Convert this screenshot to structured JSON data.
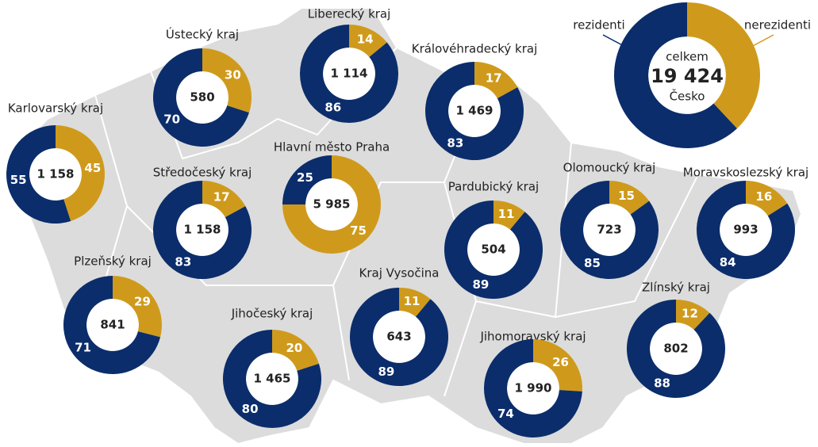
{
  "colors": {
    "residents": "#0b2d6b",
    "nonresidents": "#cf9a1c"
  },
  "country": {
    "legend": {
      "residents": "rezidenti",
      "nonresidents": "nerezidenti"
    },
    "label": "celkem",
    "total": "19 424",
    "name": "Česko",
    "residents": 62,
    "nonresidents": 38
  },
  "regions": [
    {
      "name": "Karlovarský kraj",
      "total": "1 158",
      "residents": 55,
      "nonresidents": 45
    },
    {
      "name": "Ústecký kraj",
      "total": "580",
      "residents": 70,
      "nonresidents": 30
    },
    {
      "name": "Liberecký kraj",
      "total": "1 114",
      "residents": 86,
      "nonresidents": 14
    },
    {
      "name": "Královéhradecký kraj",
      "total": "1 469",
      "residents": 83,
      "nonresidents": 17
    },
    {
      "name": "Středočeský kraj",
      "total": "1 158",
      "residents": 83,
      "nonresidents": 17
    },
    {
      "name": "Hlavní město Praha",
      "total": "5 985",
      "residents": 25,
      "nonresidents": 75
    },
    {
      "name": "Pardubický kraj",
      "total": "504",
      "residents": 89,
      "nonresidents": 11
    },
    {
      "name": "Olomoucký kraj",
      "total": "723",
      "residents": 85,
      "nonresidents": 15
    },
    {
      "name": "Moravskoslezský kraj",
      "total": "993",
      "residents": 84,
      "nonresidents": 16
    },
    {
      "name": "Plzeňský kraj",
      "total": "841",
      "residents": 71,
      "nonresidents": 29
    },
    {
      "name": "Kraj Vysočina",
      "total": "643",
      "residents": 89,
      "nonresidents": 11
    },
    {
      "name": "Jihočeský kraj",
      "total": "1 465",
      "residents": 80,
      "nonresidents": 20
    },
    {
      "name": "Jihomoravský kraj",
      "total": "1 990",
      "residents": 74,
      "nonresidents": 26
    },
    {
      "name": "Zlínský kraj",
      "total": "802",
      "residents": 88,
      "nonresidents": 12
    }
  ]
}
